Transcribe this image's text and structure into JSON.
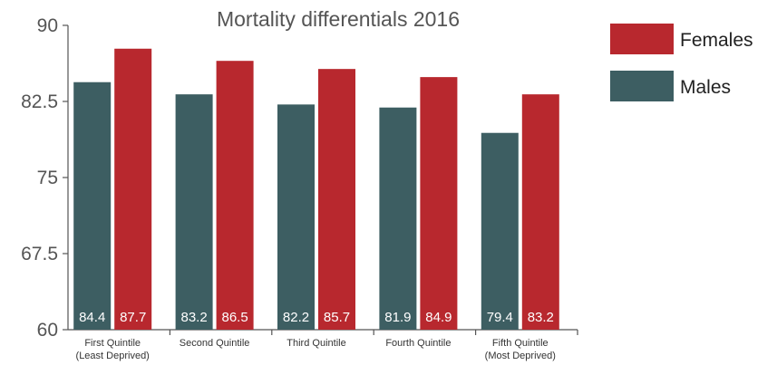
{
  "chart_data": {
    "type": "bar",
    "title": "Mortality differentials 2016",
    "xlabel": "",
    "ylabel": "",
    "ylim": [
      60,
      90
    ],
    "yticks": [
      "60",
      "67.5",
      "75",
      "82.5",
      "90"
    ],
    "grid": false,
    "legend_position": "top-right",
    "categories": [
      [
        "First Quintile",
        "(Least Deprived)"
      ],
      [
        "Second Quintile"
      ],
      [
        "Third Quintile"
      ],
      [
        "Fourth Quintile"
      ],
      [
        "Fifth Quintile",
        "(Most Deprived)"
      ]
    ],
    "series": [
      {
        "name": "Males",
        "color": "#3d5e62",
        "values": [
          84.4,
          83.2,
          82.2,
          81.9,
          79.4
        ],
        "labels": [
          "84.4",
          "83.2",
          "82.2",
          "81.9",
          "79.4"
        ]
      },
      {
        "name": "Females",
        "color": "#b8282e",
        "values": [
          87.7,
          86.5,
          85.7,
          84.9,
          83.2
        ],
        "labels": [
          "87.7",
          "86.5",
          "85.7",
          "84.9",
          "83.2"
        ]
      }
    ],
    "legend_order": [
      "Females",
      "Males"
    ]
  }
}
